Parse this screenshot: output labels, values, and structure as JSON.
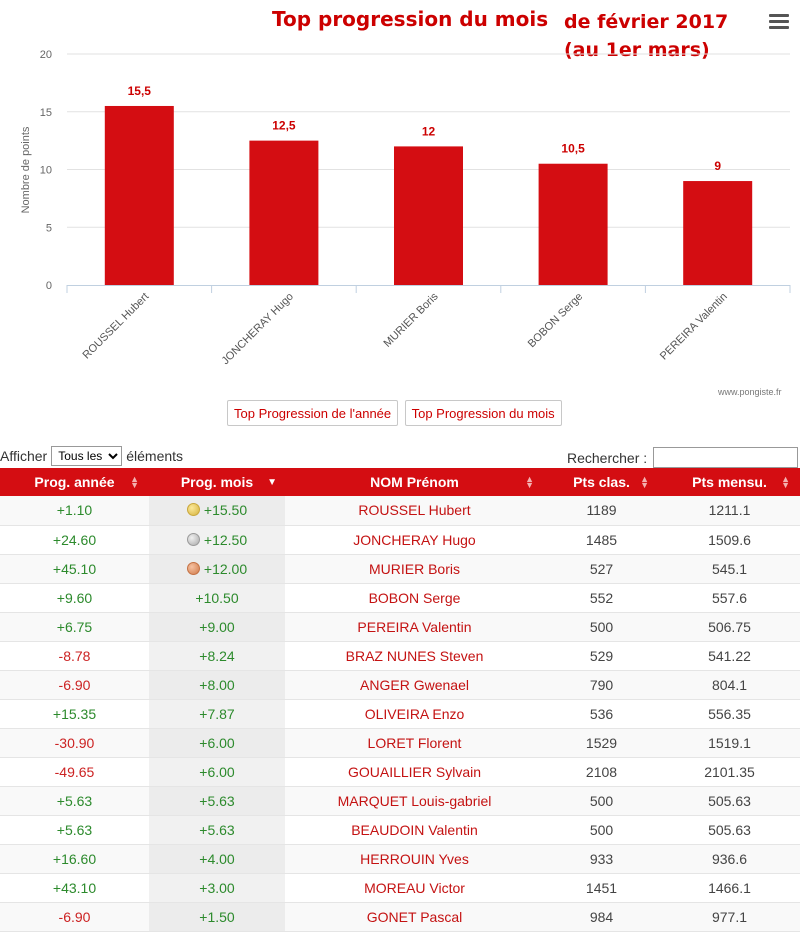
{
  "chart_data": {
    "type": "bar",
    "title": "Top progression du mois",
    "subtitle_line1": "de février 2017",
    "subtitle_line2": "(au 1er mars)",
    "ylabel": "Nombre de points",
    "xlabel": "",
    "ylim": [
      0,
      20
    ],
    "yticks": [
      "0",
      "5",
      "10",
      "15",
      "20"
    ],
    "ytick_values": [
      0,
      5,
      10,
      15,
      20
    ],
    "categories": [
      "ROUSSEL Hubert",
      "JONCHERAY Hugo",
      "MURIER Boris",
      "BOBON Serge",
      "PEREIRA Valentin"
    ],
    "values": [
      15.5,
      12.5,
      12,
      10.5,
      9
    ],
    "data_labels": [
      "15,5",
      "12,5",
      "12",
      "10,5",
      "9"
    ],
    "bar_color": "#d40d12",
    "grid": true,
    "legend": "none"
  },
  "credits": "www.pongiste.fr",
  "buttons": {
    "year": "Top Progression de l'année",
    "month": "Top Progression du mois"
  },
  "controls": {
    "show_prefix": "Afficher",
    "show_value": "Tous les",
    "show_suffix": "éléments",
    "search_label": "Rechercher :"
  },
  "table": {
    "headers": [
      "Prog. année",
      "Prog. mois",
      "NOM Prénom",
      "Pts clas.",
      "Pts mensu."
    ],
    "rows": [
      {
        "annee": "+1.10",
        "mois": "+15.50",
        "nom": "ROUSSEL Hubert",
        "clas": "1189",
        "mensu": "1211.1"
      },
      {
        "annee": "+24.60",
        "mois": "+12.50",
        "nom": "JONCHERAY Hugo",
        "clas": "1485",
        "mensu": "1509.6"
      },
      {
        "annee": "+45.10",
        "mois": "+12.00",
        "nom": "MURIER Boris",
        "clas": "527",
        "mensu": "545.1"
      },
      {
        "annee": "+9.60",
        "mois": "+10.50",
        "nom": "BOBON Serge",
        "clas": "552",
        "mensu": "557.6"
      },
      {
        "annee": "+6.75",
        "mois": "+9.00",
        "nom": "PEREIRA Valentin",
        "clas": "500",
        "mensu": "506.75"
      },
      {
        "annee": "-8.78",
        "mois": "+8.24",
        "nom": "BRAZ NUNES Steven",
        "clas": "529",
        "mensu": "541.22"
      },
      {
        "annee": "-6.90",
        "mois": "+8.00",
        "nom": "ANGER Gwenael",
        "clas": "790",
        "mensu": "804.1"
      },
      {
        "annee": "+15.35",
        "mois": "+7.87",
        "nom": "OLIVEIRA Enzo",
        "clas": "536",
        "mensu": "556.35"
      },
      {
        "annee": "-30.90",
        "mois": "+6.00",
        "nom": "LORET Florent",
        "clas": "1529",
        "mensu": "1519.1"
      },
      {
        "annee": "-49.65",
        "mois": "+6.00",
        "nom": "GOUAILLIER Sylvain",
        "clas": "2108",
        "mensu": "2101.35"
      },
      {
        "annee": "+5.63",
        "mois": "+5.63",
        "nom": "MARQUET Louis-gabriel",
        "clas": "500",
        "mensu": "505.63"
      },
      {
        "annee": "+5.63",
        "mois": "+5.63",
        "nom": "BEAUDOIN Valentin",
        "clas": "500",
        "mensu": "505.63"
      },
      {
        "annee": "+16.60",
        "mois": "+4.00",
        "nom": "HERROUIN Yves",
        "clas": "933",
        "mensu": "936.6"
      },
      {
        "annee": "+43.10",
        "mois": "+3.00",
        "nom": "MOREAU Victor",
        "clas": "1451",
        "mensu": "1466.1"
      },
      {
        "annee": "-6.90",
        "mois": "+1.50",
        "nom": "GONET Pascal",
        "clas": "984",
        "mensu": "977.1"
      }
    ],
    "medals": [
      "gold",
      "silver",
      "bronze"
    ]
  },
  "colors": {
    "accent": "#d40d12",
    "positive": "#2c8a2c",
    "negative": "#cc2222"
  }
}
